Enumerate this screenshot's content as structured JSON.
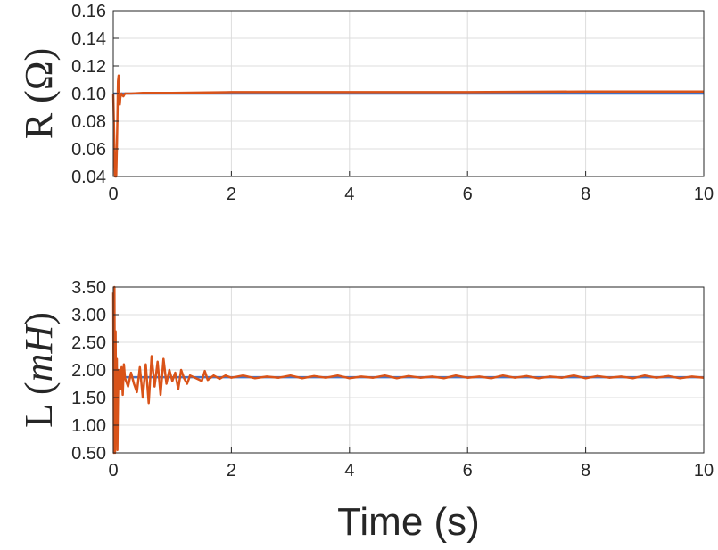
{
  "chart_data": [
    {
      "type": "line",
      "ylabel": "R (Ω)",
      "xlabel": "",
      "xlim": [
        0,
        10
      ],
      "ylim": [
        0.04,
        0.16
      ],
      "xticks": [
        "0",
        "2",
        "4",
        "6",
        "8",
        "10"
      ],
      "yticks": [
        "0.04",
        "0.06",
        "0.08",
        "0.10",
        "0.12",
        "0.14",
        "0.16"
      ],
      "grid": true,
      "series": [
        {
          "color": "#4472c4",
          "x": [
            0,
            10
          ],
          "y": [
            0.1,
            0.1
          ]
        },
        {
          "color": "#d95319",
          "x": [
            0,
            0.03,
            0.05,
            0.06,
            0.07,
            0.08,
            0.09,
            0.1,
            0.11,
            0.12,
            0.14,
            0.17,
            0.2,
            0.3,
            0.5,
            1,
            2,
            4,
            6,
            8,
            10
          ],
          "y": [
            0.1,
            0.04,
            0.04,
            0.06,
            0.08,
            0.109,
            0.113,
            0.1,
            0.092,
            0.097,
            0.1,
            0.098,
            0.1,
            0.1,
            0.1005,
            0.1005,
            0.101,
            0.101,
            0.101,
            0.1015,
            0.1015
          ]
        }
      ]
    },
    {
      "type": "line",
      "ylabel": "L (mH)",
      "ylabel_parts": {
        "letter": "L",
        "open": "(",
        "unit": "mH",
        "close": ")"
      },
      "xlabel": "Time (s)",
      "xlim": [
        0,
        10
      ],
      "ylim": [
        0.5,
        3.5
      ],
      "xticks": [
        "0",
        "2",
        "4",
        "6",
        "8",
        "10"
      ],
      "yticks": [
        "0.50",
        "1.00",
        "1.50",
        "2.00",
        "2.50",
        "3.00",
        "3.50"
      ],
      "grid": true,
      "series": [
        {
          "color": "#4472c4",
          "x": [
            0,
            10
          ],
          "y": [
            1.87,
            1.87
          ]
        },
        {
          "color": "#d95319",
          "x": [
            0,
            0.01,
            0.02,
            0.03,
            0.04,
            0.05,
            0.06,
            0.07,
            0.08,
            0.09,
            0.1,
            0.12,
            0.14,
            0.16,
            0.18,
            0.2,
            0.25,
            0.3,
            0.35,
            0.4,
            0.45,
            0.5,
            0.55,
            0.6,
            0.65,
            0.7,
            0.75,
            0.8,
            0.85,
            0.9,
            0.95,
            1.0,
            1.05,
            1.1,
            1.15,
            1.2,
            1.25,
            1.3,
            1.4,
            1.5,
            1.55,
            1.6,
            1.7,
            1.8,
            1.9,
            2.0,
            2.2,
            2.4,
            2.6,
            2.8,
            3.0,
            3.2,
            3.4,
            3.6,
            3.8,
            4.0,
            4.2,
            4.4,
            4.6,
            4.8,
            5.0,
            5.2,
            5.4,
            5.6,
            5.8,
            6.0,
            6.2,
            6.4,
            6.6,
            6.8,
            7.0,
            7.2,
            7.4,
            7.6,
            7.8,
            8.0,
            8.2,
            8.4,
            8.6,
            8.8,
            9.0,
            9.2,
            9.4,
            9.6,
            9.8,
            10.0
          ],
          "y": [
            3.4,
            0.5,
            3.5,
            0.5,
            2.7,
            1.0,
            2.2,
            0.55,
            1.5,
            2.0,
            1.8,
            1.65,
            2.05,
            1.55,
            2.1,
            1.85,
            1.7,
            1.95,
            1.75,
            1.6,
            2.05,
            1.5,
            2.1,
            1.4,
            2.25,
            1.7,
            2.15,
            1.55,
            2.2,
            1.75,
            2.0,
            1.8,
            1.95,
            1.65,
            2.0,
            1.85,
            1.75,
            1.9,
            1.85,
            1.8,
            1.98,
            1.82,
            1.9,
            1.84,
            1.9,
            1.86,
            1.9,
            1.85,
            1.88,
            1.86,
            1.9,
            1.85,
            1.89,
            1.86,
            1.9,
            1.85,
            1.88,
            1.86,
            1.9,
            1.85,
            1.89,
            1.86,
            1.88,
            1.85,
            1.9,
            1.86,
            1.88,
            1.85,
            1.9,
            1.86,
            1.89,
            1.85,
            1.88,
            1.86,
            1.9,
            1.85,
            1.89,
            1.86,
            1.88,
            1.85,
            1.9,
            1.86,
            1.89,
            1.85,
            1.88,
            1.86
          ]
        }
      ]
    }
  ]
}
